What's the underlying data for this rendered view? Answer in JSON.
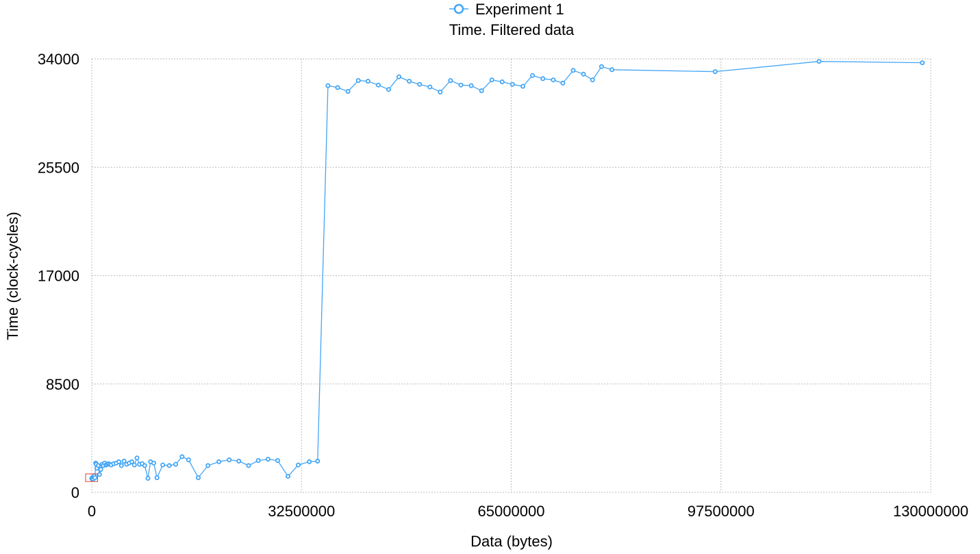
{
  "chart_data": {
    "type": "line",
    "title": "Time. Filtered data",
    "xlabel": "Data (bytes)",
    "ylabel": "Time (clock-cycles)",
    "xlim": [
      0,
      130000000
    ],
    "ylim": [
      0,
      34000
    ],
    "x_ticks": [
      0,
      32500000,
      65000000,
      97500000,
      130000000
    ],
    "x_tick_labels": [
      "0",
      "32500000",
      "65000000",
      "97500000",
      "130000000"
    ],
    "y_ticks": [
      0,
      8500,
      17000,
      25500,
      34000
    ],
    "y_tick_labels": [
      "0",
      "8500",
      "17000",
      "25500",
      "34000"
    ],
    "grid": true,
    "legend_position": "top-center",
    "colors": {
      "series": "#42a5f5",
      "grid": "#bbbbbb",
      "highlight_box": "#e53935"
    },
    "series": [
      {
        "name": "Experiment 1",
        "marker": "circle",
        "x": [
          0,
          50000,
          100000,
          150000,
          200000,
          300000,
          400000,
          500000,
          600000,
          700000,
          800000,
          1000000,
          1200000,
          1400000,
          1600000,
          1800000,
          2000000,
          2200000,
          2400000,
          2600000,
          2800000,
          3000000,
          3400000,
          3800000,
          4200000,
          4600000,
          5000000,
          5400000,
          5800000,
          6200000,
          6600000,
          7000000,
          7400000,
          7800000,
          8200000,
          8700000,
          9100000,
          9600000,
          10100000,
          11000000,
          12000000,
          13000000,
          14000000,
          15000000,
          16500000,
          18000000,
          19700000,
          21300000,
          22800000,
          24300000,
          25800000,
          27300000,
          28800000,
          30400000,
          32000000,
          33700000,
          35000000,
          36600000,
          38100000,
          39700000,
          41300000,
          42800000,
          44400000,
          46000000,
          47600000,
          49200000,
          50800000,
          52400000,
          54000000,
          55600000,
          57200000,
          58800000,
          60400000,
          62000000,
          63600000,
          65200000,
          66800000,
          68300000,
          69900000,
          71500000,
          73000000,
          74600000,
          76200000,
          77600000,
          79000000,
          80600000,
          96600000,
          112700000,
          128700000
        ],
        "y": [
          1100,
          1050,
          1150,
          1200,
          1050,
          1200,
          1300,
          1150,
          2300,
          2200,
          1900,
          2100,
          1400,
          1800,
          2200,
          2100,
          2300,
          2150,
          2200,
          2250,
          2200,
          2150,
          2250,
          2300,
          2400,
          2100,
          2450,
          2200,
          2300,
          2400,
          2150,
          2700,
          2200,
          2250,
          2100,
          1100,
          2400,
          2300,
          1150,
          2150,
          2100,
          2200,
          2800,
          2550,
          1150,
          2100,
          2400,
          2550,
          2450,
          2100,
          2500,
          2600,
          2500,
          1250,
          2150,
          2400,
          2450,
          31900,
          31750,
          31450,
          32300,
          32250,
          31950,
          31600,
          32600,
          32250,
          32000,
          31800,
          31400,
          32300,
          31950,
          31900,
          31500,
          32350,
          32200,
          32000,
          31850,
          32700,
          32450,
          32350,
          32100,
          33100,
          32800,
          32350,
          33400,
          33150,
          33000,
          33800,
          33700
        ]
      }
    ],
    "highlight_box": {
      "x_range": [
        0,
        800000
      ],
      "y_range": [
        850,
        1450
      ]
    }
  }
}
